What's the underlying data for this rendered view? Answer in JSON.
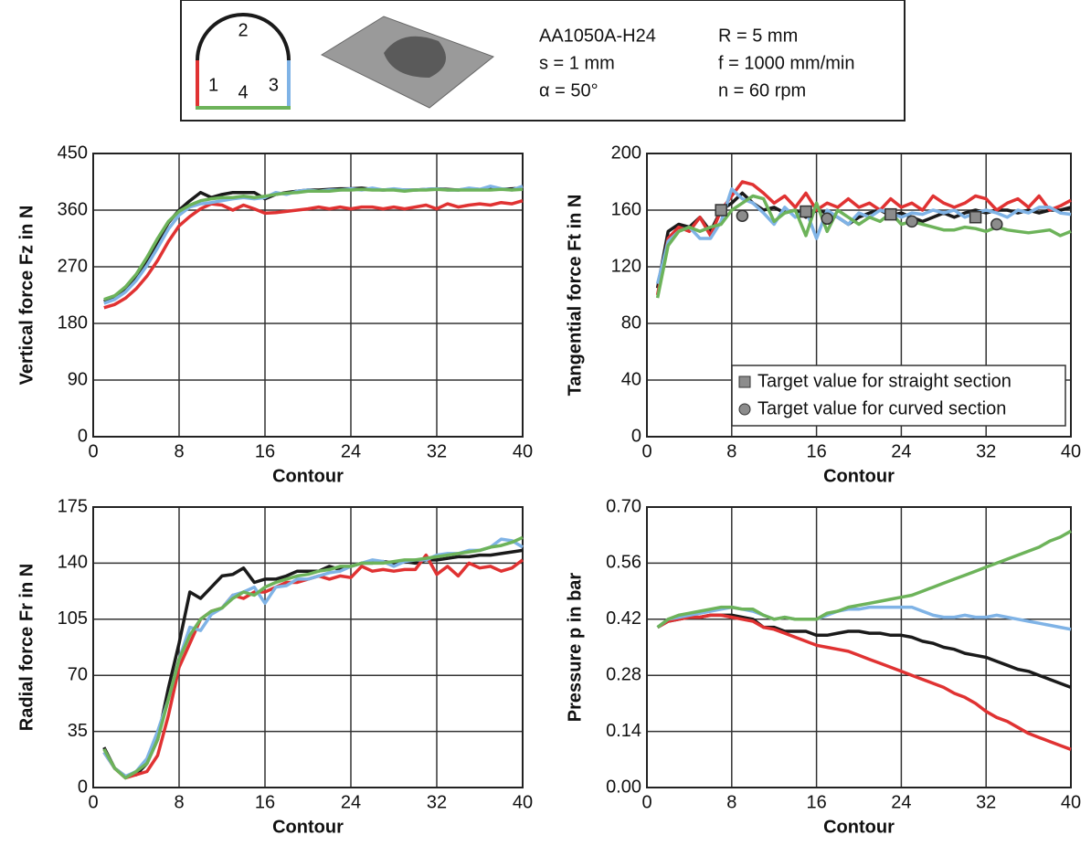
{
  "header": {
    "diagram_labels": [
      "1",
      "2",
      "3",
      "4"
    ],
    "params": [
      "AA1050A-H24",
      "s = 1 mm",
      "α = 50°",
      "R = 5 mm",
      "f = 1000 mm/min",
      "n = 60 rpm"
    ]
  },
  "chart_data": [
    {
      "type": "line",
      "ylabel": "Vertical force Fz in N",
      "xlabel": "Contour",
      "x": [
        1,
        2,
        3,
        4,
        5,
        6,
        7,
        8,
        9,
        10,
        11,
        12,
        13,
        14,
        15,
        16,
        17,
        18,
        19,
        20,
        21,
        22,
        23,
        24,
        25,
        26,
        27,
        28,
        29,
        30,
        31,
        32,
        33,
        34,
        35,
        36,
        37,
        38,
        39,
        40
      ],
      "xlim": [
        0,
        40
      ],
      "xticks": [
        0,
        8,
        16,
        24,
        32,
        40
      ],
      "ylim": [
        0,
        450
      ],
      "yticks": [
        0,
        90,
        180,
        270,
        360,
        450
      ],
      "grid": true,
      "series": [
        {
          "color": "#1a1a1a",
          "values": [
            215,
            222,
            235,
            255,
            280,
            310,
            340,
            360,
            375,
            388,
            380,
            385,
            388,
            388,
            388,
            378,
            385,
            388,
            390,
            392,
            392,
            393,
            394,
            394,
            395,
            393,
            392,
            393,
            392,
            392,
            393,
            394,
            393,
            392,
            394,
            393,
            394,
            393,
            394,
            395
          ]
        },
        {
          "color": "#e03232",
          "values": [
            205,
            210,
            220,
            235,
            255,
            280,
            310,
            335,
            350,
            362,
            370,
            368,
            360,
            368,
            362,
            355,
            356,
            358,
            360,
            362,
            365,
            362,
            365,
            362,
            365,
            365,
            362,
            365,
            362,
            365,
            368,
            362,
            370,
            365,
            368,
            370,
            368,
            372,
            370,
            375
          ]
        },
        {
          "color": "#7fb3e6",
          "values": [
            212,
            218,
            230,
            248,
            272,
            300,
            330,
            352,
            365,
            370,
            372,
            375,
            378,
            380,
            378,
            380,
            388,
            385,
            390,
            392,
            390,
            392,
            392,
            394,
            392,
            395,
            392,
            394,
            392,
            392,
            393,
            394,
            392,
            392,
            395,
            393,
            398,
            394,
            392,
            398
          ]
        },
        {
          "color": "#6db35a",
          "values": [
            218,
            224,
            238,
            258,
            285,
            315,
            342,
            358,
            368,
            375,
            378,
            380,
            380,
            382,
            380,
            382,
            385,
            387,
            388,
            390,
            390,
            390,
            392,
            392,
            393,
            392,
            392,
            392,
            390,
            392,
            392,
            393,
            392,
            392,
            392,
            392,
            392,
            393,
            392,
            393
          ]
        }
      ]
    },
    {
      "type": "line",
      "ylabel": "Tangential force Ft in N",
      "xlabel": "Contour",
      "x": [
        1,
        2,
        3,
        4,
        5,
        6,
        7,
        8,
        9,
        10,
        11,
        12,
        13,
        14,
        15,
        16,
        17,
        18,
        19,
        20,
        21,
        22,
        23,
        24,
        25,
        26,
        27,
        28,
        29,
        30,
        31,
        32,
        33,
        34,
        35,
        36,
        37,
        38,
        39,
        40
      ],
      "xlim": [
        0,
        40
      ],
      "xticks": [
        0,
        8,
        16,
        24,
        32,
        40
      ],
      "ylim": [
        0,
        200
      ],
      "yticks": [
        0,
        40,
        80,
        120,
        160,
        200
      ],
      "grid": true,
      "legend": "lower right",
      "series": [
        {
          "color": "#1a1a1a",
          "values": [
            105,
            145,
            150,
            148,
            155,
            145,
            160,
            165,
            172,
            165,
            160,
            162,
            158,
            160,
            155,
            160,
            158,
            155,
            150,
            155,
            158,
            160,
            156,
            158,
            155,
            152,
            155,
            158,
            155,
            158,
            160,
            158,
            160,
            160,
            158,
            160,
            158,
            160,
            160,
            162
          ]
        },
        {
          "color": "#e03232",
          "values": [
            100,
            140,
            148,
            145,
            155,
            142,
            160,
            170,
            180,
            178,
            172,
            165,
            170,
            162,
            172,
            160,
            165,
            162,
            168,
            162,
            165,
            160,
            168,
            162,
            165,
            160,
            170,
            165,
            162,
            165,
            170,
            168,
            160,
            165,
            168,
            162,
            170,
            160,
            163,
            167
          ]
        },
        {
          "color": "#7fb3e6",
          "values": [
            108,
            138,
            145,
            148,
            140,
            140,
            152,
            175,
            168,
            165,
            158,
            150,
            162,
            155,
            160,
            140,
            160,
            155,
            150,
            158,
            155,
            160,
            158,
            155,
            158,
            157,
            160,
            158,
            160,
            155,
            158,
            160,
            158,
            155,
            160,
            158,
            162,
            162,
            158,
            157
          ]
        },
        {
          "color": "#6db35a",
          "values": [
            98,
            135,
            145,
            148,
            145,
            148,
            150,
            160,
            165,
            170,
            168,
            152,
            158,
            160,
            142,
            165,
            145,
            160,
            155,
            150,
            155,
            152,
            158,
            150,
            152,
            150,
            148,
            146,
            146,
            148,
            147,
            145,
            148,
            146,
            145,
            144,
            145,
            146,
            142,
            145
          ]
        },
        {
          "name": "Target value for straight section",
          "marker": "square",
          "color": "#8c8c8c",
          "x": [
            7,
            15,
            23,
            31
          ],
          "values": [
            160,
            159,
            157,
            155
          ]
        },
        {
          "name": "Target value for curved section",
          "marker": "circle",
          "color": "#8c8c8c",
          "x": [
            9,
            17,
            25,
            33
          ],
          "values": [
            156,
            154,
            152,
            150
          ]
        }
      ]
    },
    {
      "type": "line",
      "ylabel": "Radial force Fr in N",
      "xlabel": "Contour",
      "x": [
        1,
        2,
        3,
        4,
        5,
        6,
        7,
        8,
        9,
        10,
        11,
        12,
        13,
        14,
        15,
        16,
        17,
        18,
        19,
        20,
        21,
        22,
        23,
        24,
        25,
        26,
        27,
        28,
        29,
        30,
        31,
        32,
        33,
        34,
        35,
        36,
        37,
        38,
        39,
        40
      ],
      "xlim": [
        0,
        40
      ],
      "xticks": [
        0,
        8,
        16,
        24,
        32,
        40
      ],
      "ylim": [
        0,
        175
      ],
      "yticks": [
        0,
        35,
        70,
        105,
        140,
        175
      ],
      "grid": true,
      "series": [
        {
          "color": "#1a1a1a",
          "values": [
            25,
            12,
            7,
            8,
            15,
            30,
            62,
            90,
            122,
            118,
            125,
            132,
            133,
            137,
            128,
            130,
            130,
            132,
            135,
            135,
            135,
            138,
            136,
            138,
            140,
            140,
            141,
            140,
            141,
            140,
            142,
            142,
            143,
            144,
            144,
            145,
            145,
            146,
            147,
            148
          ]
        },
        {
          "color": "#e03232",
          "values": [
            22,
            12,
            6,
            8,
            10,
            20,
            45,
            75,
            90,
            105,
            110,
            112,
            120,
            118,
            122,
            122,
            125,
            128,
            128,
            130,
            132,
            130,
            132,
            131,
            138,
            135,
            136,
            135,
            136,
            136,
            145,
            133,
            138,
            132,
            140,
            137,
            138,
            135,
            137,
            142
          ]
        },
        {
          "color": "#7fb3e6",
          "values": [
            22,
            12,
            7,
            10,
            18,
            35,
            55,
            80,
            100,
            98,
            108,
            112,
            120,
            122,
            125,
            115,
            125,
            126,
            130,
            130,
            132,
            134,
            135,
            138,
            140,
            142,
            141,
            138,
            141,
            142,
            142,
            145,
            146,
            146,
            148,
            148,
            150,
            155,
            154,
            150
          ]
        },
        {
          "color": "#6db35a",
          "values": [
            24,
            12,
            6,
            10,
            15,
            30,
            55,
            80,
            95,
            105,
            110,
            112,
            118,
            122,
            120,
            125,
            128,
            130,
            132,
            133,
            135,
            136,
            138,
            138,
            140,
            140,
            140,
            141,
            142,
            142,
            143,
            144,
            145,
            146,
            147,
            148,
            150,
            151,
            153,
            156
          ]
        }
      ]
    },
    {
      "type": "line",
      "ylabel": "Pressure p in bar",
      "xlabel": "Contour",
      "x": [
        1,
        2,
        3,
        4,
        5,
        6,
        7,
        8,
        9,
        10,
        11,
        12,
        13,
        14,
        15,
        16,
        17,
        18,
        19,
        20,
        21,
        22,
        23,
        24,
        25,
        26,
        27,
        28,
        29,
        30,
        31,
        32,
        33,
        34,
        35,
        36,
        37,
        38,
        39,
        40
      ],
      "xlim": [
        0,
        40
      ],
      "xticks": [
        0,
        8,
        16,
        24,
        32,
        40
      ],
      "ylim": [
        0,
        0.7
      ],
      "yticks": [
        {
          "value": 0,
          "label": "0.00"
        },
        0.14,
        0.28,
        0.42,
        0.56,
        {
          "value": 0.7,
          "label": "0.70"
        }
      ],
      "grid": true,
      "series": [
        {
          "color": "#1a1a1a",
          "values": [
            0.4,
            0.415,
            0.42,
            0.425,
            0.425,
            0.43,
            0.43,
            0.43,
            0.425,
            0.42,
            0.4,
            0.4,
            0.39,
            0.39,
            0.39,
            0.38,
            0.38,
            0.385,
            0.39,
            0.39,
            0.385,
            0.385,
            0.38,
            0.38,
            0.375,
            0.365,
            0.36,
            0.35,
            0.345,
            0.335,
            0.33,
            0.325,
            0.315,
            0.305,
            0.295,
            0.29,
            0.28,
            0.27,
            0.26,
            0.25
          ]
        },
        {
          "color": "#e03232",
          "values": [
            0.4,
            0.415,
            0.42,
            0.425,
            0.425,
            0.43,
            0.43,
            0.425,
            0.42,
            0.415,
            0.4,
            0.395,
            0.385,
            0.375,
            0.365,
            0.355,
            0.35,
            0.345,
            0.34,
            0.33,
            0.32,
            0.31,
            0.3,
            0.29,
            0.28,
            0.27,
            0.26,
            0.25,
            0.235,
            0.225,
            0.21,
            0.19,
            0.175,
            0.165,
            0.15,
            0.135,
            0.125,
            0.115,
            0.105,
            0.095
          ]
        },
        {
          "color": "#7fb3e6",
          "values": [
            0.4,
            0.42,
            0.425,
            0.43,
            0.435,
            0.44,
            0.445,
            0.45,
            0.445,
            0.44,
            0.43,
            0.42,
            0.425,
            0.42,
            0.42,
            0.42,
            0.43,
            0.44,
            0.445,
            0.445,
            0.45,
            0.45,
            0.45,
            0.45,
            0.45,
            0.44,
            0.43,
            0.425,
            0.425,
            0.43,
            0.425,
            0.425,
            0.43,
            0.425,
            0.42,
            0.415,
            0.41,
            0.405,
            0.4,
            0.395
          ]
        },
        {
          "color": "#6db35a",
          "values": [
            0.4,
            0.42,
            0.43,
            0.435,
            0.44,
            0.445,
            0.45,
            0.45,
            0.445,
            0.445,
            0.43,
            0.42,
            0.425,
            0.42,
            0.42,
            0.42,
            0.435,
            0.44,
            0.45,
            0.455,
            0.46,
            0.465,
            0.47,
            0.475,
            0.48,
            0.49,
            0.5,
            0.51,
            0.52,
            0.53,
            0.54,
            0.55,
            0.56,
            0.57,
            0.58,
            0.59,
            0.6,
            0.615,
            0.625,
            0.64
          ]
        }
      ]
    }
  ]
}
